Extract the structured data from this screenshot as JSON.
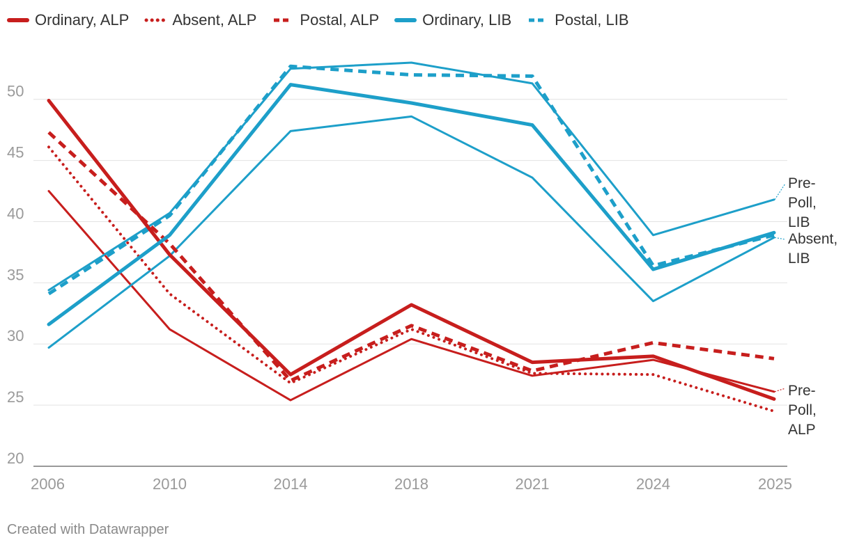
{
  "chart_data": {
    "type": "line",
    "categories": [
      "2006",
      "2010",
      "2014",
      "2018",
      "2021",
      "2024",
      "2025"
    ],
    "ylim": [
      20,
      53
    ],
    "yticks": [
      20,
      25,
      30,
      35,
      40,
      45,
      50
    ],
    "grid": true,
    "legend_position": "top",
    "series": [
      {
        "name": "Ordinary, ALP",
        "party": "ALP",
        "color": "#c71e1d",
        "style": "solid-thick",
        "in_legend": true,
        "values": [
          49.9,
          37.3,
          27.5,
          33.2,
          28.5,
          29.0,
          25.5
        ]
      },
      {
        "name": "Absent, ALP",
        "party": "ALP",
        "color": "#c71e1d",
        "style": "dotted",
        "in_legend": true,
        "values": [
          46.1,
          34.1,
          26.8,
          31.2,
          27.6,
          27.5,
          24.5
        ]
      },
      {
        "name": "Postal, ALP",
        "party": "ALP",
        "color": "#c71e1d",
        "style": "dashed",
        "in_legend": true,
        "values": [
          47.3,
          38.2,
          27.0,
          31.5,
          27.8,
          30.1,
          28.8
        ]
      },
      {
        "name": "Pre-Poll, ALP",
        "party": "ALP",
        "color": "#c71e1d",
        "style": "solid-thin",
        "in_legend": false,
        "values": [
          42.5,
          31.2,
          25.4,
          30.4,
          27.4,
          28.7,
          26.1
        ]
      },
      {
        "name": "Ordinary, LIB",
        "party": "LIB",
        "color": "#1d9fc9",
        "style": "solid-thick",
        "in_legend": true,
        "values": [
          31.6,
          38.9,
          51.2,
          49.7,
          47.9,
          36.1,
          39.1
        ]
      },
      {
        "name": "Postal, LIB",
        "party": "LIB",
        "color": "#1d9fc9",
        "style": "dashed",
        "in_legend": true,
        "values": [
          34.1,
          40.5,
          52.7,
          52.0,
          51.9,
          36.4,
          38.9
        ]
      },
      {
        "name": "Pre-Poll, LIB",
        "party": "LIB",
        "color": "#1d9fc9",
        "style": "solid-thin",
        "in_legend": false,
        "values": [
          34.4,
          40.7,
          52.5,
          53.0,
          51.3,
          38.9,
          41.8
        ]
      },
      {
        "name": "Absent, LIB",
        "party": "LIB",
        "color": "#1d9fc9",
        "style": "solid-thin",
        "in_legend": false,
        "values": [
          29.7,
          37.2,
          47.4,
          48.6,
          43.6,
          33.5,
          38.7
        ]
      }
    ],
    "end_labels": [
      {
        "series": "Pre-Poll, LIB",
        "lines": [
          "Pre-",
          "Poll,",
          "LIB"
        ]
      },
      {
        "series": "Absent, LIB",
        "lines": [
          "Absent,",
          "LIB"
        ]
      },
      {
        "series": "Pre-Poll, ALP",
        "lines": [
          "Pre-",
          "Poll,",
          "ALP"
        ]
      }
    ]
  },
  "footer": {
    "credit": "Created with Datawrapper"
  }
}
